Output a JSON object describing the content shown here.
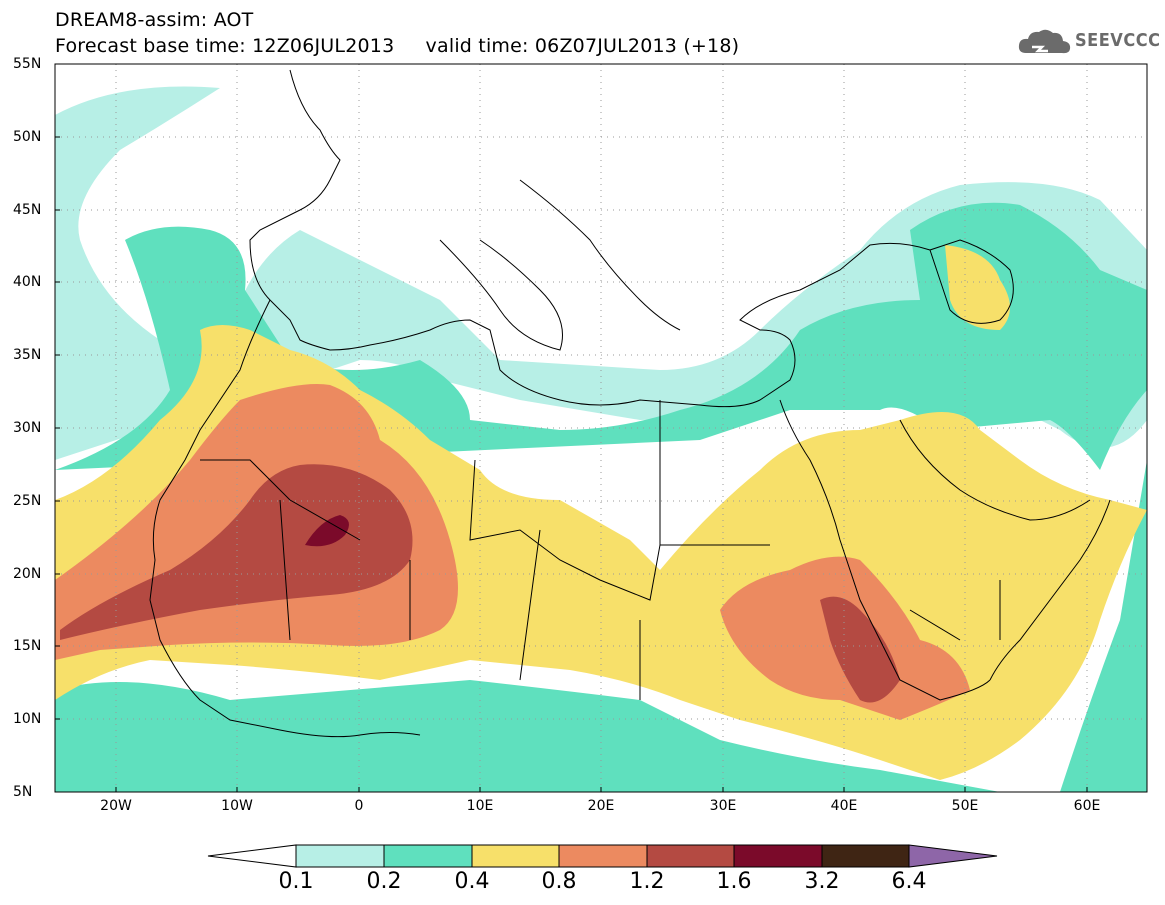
{
  "title": {
    "line1": "DREAM8-assim: AOT",
    "line2": "Forecast base time: 12Z06JUL2013     valid time: 06Z07JUL2013 (+18)"
  },
  "logo": {
    "text": "SEEVCCC",
    "icon": "cloud-logo-icon",
    "color": "#6b6b6b"
  },
  "map": {
    "lat_labels": [
      "55N",
      "50N",
      "45N",
      "40N",
      "35N",
      "30N",
      "25N",
      "20N",
      "15N",
      "10N",
      "5N"
    ],
    "lon_labels": [
      "20W",
      "10W",
      "0",
      "10E",
      "20E",
      "30E",
      "40E",
      "50E",
      "60E"
    ],
    "lat_range": [
      5,
      55
    ],
    "lon_range": [
      -25,
      65
    ],
    "grid": "dotted"
  },
  "colorbar": {
    "labels": [
      "0.1",
      "0.2",
      "0.4",
      "0.8",
      "1.2",
      "1.6",
      "3.2",
      "6.4"
    ],
    "colors": [
      "#ffffff",
      "#b7efe6",
      "#5fe0be",
      "#f7e06a",
      "#ec8a60",
      "#b44a42",
      "#7b0a2a",
      "#3f2514",
      "#8e66a8"
    ]
  }
}
